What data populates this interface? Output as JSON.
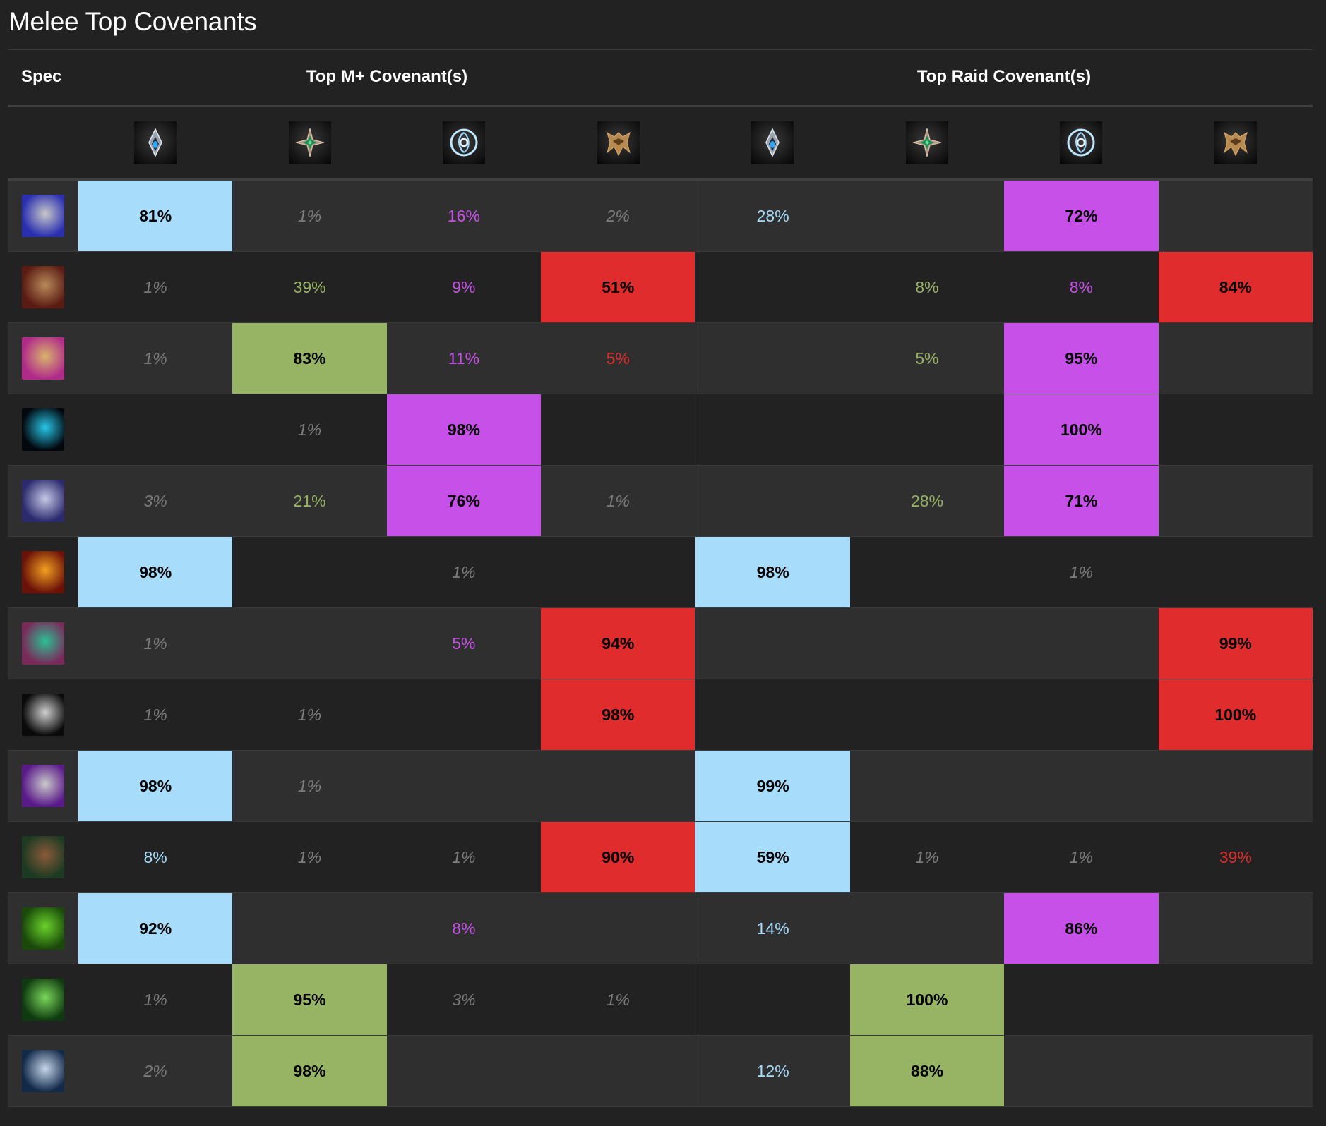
{
  "title": "Melee Top Covenants",
  "header": {
    "spec": "Spec",
    "mplus": "Top M+ Covenant(s)",
    "raid": "Top Raid Covenant(s)"
  },
  "colors": {
    "kyrian": "#a8dcfb",
    "necrolord": "#97b364",
    "night_fae": "#c750e8",
    "venthyr": "#e02c2c",
    "minor": "#7c7c7c",
    "row_odd": "#2f2f2f",
    "row_even": "#222222"
  },
  "covenants": [
    {
      "key": "kyrian",
      "name": "Kyrian",
      "icon": "kyrian-crest-icon"
    },
    {
      "key": "necrolord",
      "name": "Necrolord",
      "icon": "necrolord-sigil-icon"
    },
    {
      "key": "night_fae",
      "name": "Night Fae",
      "icon": "night-fae-swirl-icon"
    },
    {
      "key": "venthyr",
      "name": "Venthyr",
      "icon": "venthyr-wings-icon"
    }
  ],
  "rows": [
    {
      "spec_icon": "warrior-arms-icon",
      "spec_colors": [
        "#2a2fb0",
        "#c8c8c8"
      ],
      "mplus": [
        "81%",
        "1%",
        "16%",
        "2%"
      ],
      "raid": [
        "28%",
        "",
        "72%",
        ""
      ]
    },
    {
      "spec_icon": "warrior-fury-icon",
      "spec_colors": [
        "#5a1b12",
        "#b88a5a"
      ],
      "mplus": [
        "1%",
        "39%",
        "9%",
        "51%"
      ],
      "raid": [
        "",
        "8%",
        "8%",
        "84%"
      ]
    },
    {
      "spec_icon": "paladin-retribution-icon",
      "spec_colors": [
        "#b02a8a",
        "#d8b56a"
      ],
      "mplus": [
        "1%",
        "83%",
        "11%",
        "5%"
      ],
      "raid": [
        "",
        "5%",
        "95%",
        ""
      ]
    },
    {
      "spec_icon": "shaman-enhancement-icon",
      "spec_colors": [
        "#02080e",
        "#27c6e8"
      ],
      "mplus": [
        "",
        "1%",
        "98%",
        ""
      ],
      "raid": [
        "",
        "",
        "100%",
        ""
      ]
    },
    {
      "spec_icon": "death-knight-frost-icon",
      "spec_colors": [
        "#2b2a6e",
        "#c6c8e6"
      ],
      "mplus": [
        "3%",
        "21%",
        "76%",
        "1%"
      ],
      "raid": [
        "",
        "28%",
        "71%",
        ""
      ]
    },
    {
      "spec_icon": "death-knight-unholy-icon",
      "spec_colors": [
        "#6b1208",
        "#f2a020"
      ],
      "mplus": [
        "98%",
        "",
        "1%",
        ""
      ],
      "raid": [
        "98%",
        "",
        "1%",
        ""
      ]
    },
    {
      "spec_icon": "demon-hunter-havoc-icon",
      "spec_colors": [
        "#7a2a5a",
        "#2bbf92"
      ],
      "mplus": [
        "1%",
        "",
        "5%",
        "94%"
      ],
      "raid": [
        "",
        "",
        "",
        "99%"
      ]
    },
    {
      "spec_icon": "rogue-outlaw-icon",
      "spec_colors": [
        "#0a0a0a",
        "#cfcfcf"
      ],
      "mplus": [
        "1%",
        "1%",
        "",
        "98%"
      ],
      "raid": [
        "",
        "",
        "",
        "100%"
      ]
    },
    {
      "spec_icon": "rogue-assassination-icon",
      "spec_colors": [
        "#5a1a8a",
        "#c8c8c8"
      ],
      "mplus": [
        "98%",
        "1%",
        "",
        ""
      ],
      "raid": [
        "99%",
        "",
        "",
        ""
      ]
    },
    {
      "spec_icon": "rogue-subtlety-icon",
      "spec_colors": [
        "#1c3a22",
        "#8a5a3a"
      ],
      "mplus": [
        "8%",
        "1%",
        "1%",
        "90%"
      ],
      "raid": [
        "59%",
        "1%",
        "1%",
        "39%"
      ]
    },
    {
      "spec_icon": "druid-feral-icon",
      "spec_colors": [
        "#1a4a0a",
        "#6ad22a"
      ],
      "mplus": [
        "92%",
        "",
        "8%",
        ""
      ],
      "raid": [
        "14%",
        "",
        "86%",
        ""
      ]
    },
    {
      "spec_icon": "monk-windwalker-icon",
      "spec_colors": [
        "#0f3a0f",
        "#7ad65a"
      ],
      "mplus": [
        "1%",
        "95%",
        "3%",
        "1%"
      ],
      "raid": [
        "",
        "100%",
        "",
        ""
      ]
    },
    {
      "spec_icon": "hunter-survival-icon",
      "spec_colors": [
        "#122a4a",
        "#c6d6ea"
      ],
      "mplus": [
        "2%",
        "98%",
        "",
        ""
      ],
      "raid": [
        "12%",
        "88%",
        "",
        ""
      ]
    }
  ]
}
